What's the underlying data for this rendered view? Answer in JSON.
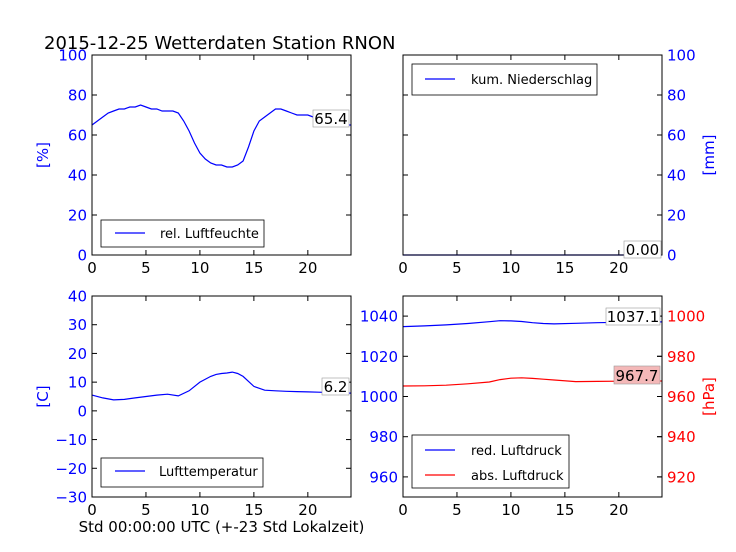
{
  "title": "2015-12-25 Wetterdaten Station RNON",
  "colors": {
    "blue": "#0000ff",
    "red": "#ff0000",
    "black": "#000000"
  },
  "chart_data": [
    {
      "id": "humidity",
      "type": "line",
      "ylabel": "[%]",
      "ylabel_side": "left",
      "ylabel_color": "#0000ff",
      "xlim": [
        0,
        24
      ],
      "ylim": [
        0,
        100
      ],
      "xticks": [
        "0",
        "5",
        "10",
        "15",
        "20"
      ],
      "yticks": [
        "0",
        "20",
        "40",
        "60",
        "80",
        "100"
      ],
      "ytick_color": "#0000ff",
      "legend": {
        "placement": "lower-left",
        "entries": [
          {
            "name": "rel. Luftfeuchte",
            "color": "#0000ff"
          }
        ]
      },
      "annotation": {
        "text": "65.4",
        "box": "#ffffff"
      },
      "series": [
        {
          "name": "rel. Luftfeuchte",
          "color": "#0000ff",
          "x": [
            0,
            0.5,
            1,
            1.5,
            2,
            2.5,
            3,
            3.5,
            4,
            4.5,
            5,
            5.5,
            6,
            6.5,
            7,
            7.5,
            8,
            8.5,
            9,
            9.5,
            10,
            10.5,
            11,
            11.5,
            12,
            12.5,
            13,
            13.5,
            14,
            14.5,
            15,
            15.5,
            16,
            16.5,
            17,
            17.5,
            18,
            18.5,
            19,
            19.5,
            20,
            20.5,
            21,
            21.5,
            22,
            22.5,
            23,
            23.5,
            24
          ],
          "y": [
            65,
            67,
            69,
            71,
            72,
            73,
            73,
            74,
            74,
            75,
            74,
            73,
            73,
            72,
            72,
            72,
            71,
            67,
            62,
            56,
            51,
            48,
            46,
            45,
            45,
            44,
            44,
            45,
            47,
            54,
            62,
            67,
            69,
            71,
            73,
            73,
            72,
            71,
            70,
            70,
            70,
            69,
            68,
            67,
            66,
            66,
            65,
            65,
            65
          ]
        }
      ]
    },
    {
      "id": "precipitation",
      "type": "line",
      "ylabel": "[mm]",
      "ylabel_side": "right",
      "ylabel_color": "#0000ff",
      "xlim": [
        0,
        24
      ],
      "ylim": [
        0,
        100
      ],
      "xticks": [
        "0",
        "5",
        "10",
        "15",
        "20"
      ],
      "yticks": [
        "0",
        "20",
        "40",
        "60",
        "80",
        "100"
      ],
      "ytick_color": "#0000ff",
      "legend": {
        "placement": "upper-left",
        "entries": [
          {
            "name": "kum. Niederschlag",
            "color": "#0000ff"
          }
        ]
      },
      "annotation": {
        "text": "0.00",
        "box": "#ffffff"
      },
      "series": [
        {
          "name": "kum. Niederschlag",
          "color": "#0000ff",
          "x": [
            0,
            24
          ],
          "y": [
            0,
            0
          ]
        }
      ]
    },
    {
      "id": "temperature",
      "type": "line",
      "ylabel": "[C]",
      "ylabel_side": "left",
      "ylabel_color": "#0000ff",
      "xlabel": "Std 00:00:00 UTC (+-23 Std Lokalzeit)",
      "xlim": [
        0,
        24
      ],
      "ylim": [
        -30,
        40
      ],
      "xticks": [
        "0",
        "5",
        "10",
        "15",
        "20"
      ],
      "yticks": [
        "−30",
        "−20",
        "−10",
        "0",
        "10",
        "20",
        "30",
        "40"
      ],
      "ytick_color": "#0000ff",
      "legend": {
        "placement": "lower-left",
        "entries": [
          {
            "name": "Lufttemperatur",
            "color": "#0000ff"
          }
        ]
      },
      "annotation": {
        "text": "6.2",
        "box": "#ffffff"
      },
      "series": [
        {
          "name": "Lufttemperatur",
          "color": "#0000ff",
          "x": [
            0,
            1,
            2,
            3,
            4,
            5,
            6,
            7,
            8,
            9,
            10,
            11,
            11.5,
            12,
            12.5,
            13,
            13.5,
            14,
            15,
            16,
            17,
            18,
            19,
            20,
            21,
            22,
            23,
            24
          ],
          "y": [
            5.5,
            4.5,
            3.8,
            4,
            4.5,
            5,
            5.5,
            5.8,
            5.2,
            7,
            10,
            12,
            12.7,
            13,
            13.2,
            13.5,
            13,
            12,
            8.5,
            7.2,
            7,
            6.8,
            6.7,
            6.6,
            6.5,
            6.4,
            6.3,
            6.2
          ]
        }
      ]
    },
    {
      "id": "pressure",
      "type": "line",
      "ylabel": "[hPa]",
      "ylabel_side": "right",
      "ylabel_color": "#ff0000",
      "xlim": [
        0,
        24
      ],
      "ylim": [
        950,
        1050
      ],
      "ylim_right": [
        910,
        1010
      ],
      "xticks": [
        "0",
        "5",
        "10",
        "15",
        "20"
      ],
      "yticks": [
        "960",
        "980",
        "1000",
        "1020",
        "1040"
      ],
      "ytick_color": "#0000ff",
      "yticks_right": [
        "920",
        "940",
        "960",
        "980",
        "1000"
      ],
      "ytick_right_color": "#ff0000",
      "legend": {
        "placement": "lower-left",
        "entries": [
          {
            "name": "red. Luftdruck",
            "color": "#0000ff"
          },
          {
            "name": "abs. Luftdruck",
            "color": "#ff0000"
          }
        ]
      },
      "annotations": [
        {
          "text": "1037.1",
          "box": "#ffffff"
        },
        {
          "text": "967.7",
          "box": "#f4b8b8"
        }
      ],
      "series": [
        {
          "name": "red. Luftdruck",
          "axis": "left",
          "color": "#0000ff",
          "x": [
            0,
            2,
            4,
            6,
            8,
            9,
            10,
            11,
            12,
            13,
            14,
            16,
            18,
            20,
            22,
            24
          ],
          "y": [
            1034.8,
            1035.1,
            1035.6,
            1036.3,
            1037.2,
            1037.7,
            1037.6,
            1037.3,
            1036.7,
            1036.3,
            1036.1,
            1036.4,
            1036.7,
            1036.9,
            1037.0,
            1037.1
          ]
        },
        {
          "name": "abs. Luftdruck",
          "axis": "right",
          "color": "#ff0000",
          "x": [
            0,
            2,
            4,
            6,
            8,
            9,
            10,
            11,
            12,
            13,
            14,
            16,
            18,
            20,
            22,
            24
          ],
          "y": [
            965.2,
            965.3,
            965.6,
            966.3,
            967.2,
            968.4,
            969.1,
            969.3,
            969.0,
            968.6,
            968.2,
            967.4,
            967.5,
            967.6,
            967.7,
            967.7
          ]
        }
      ]
    }
  ]
}
